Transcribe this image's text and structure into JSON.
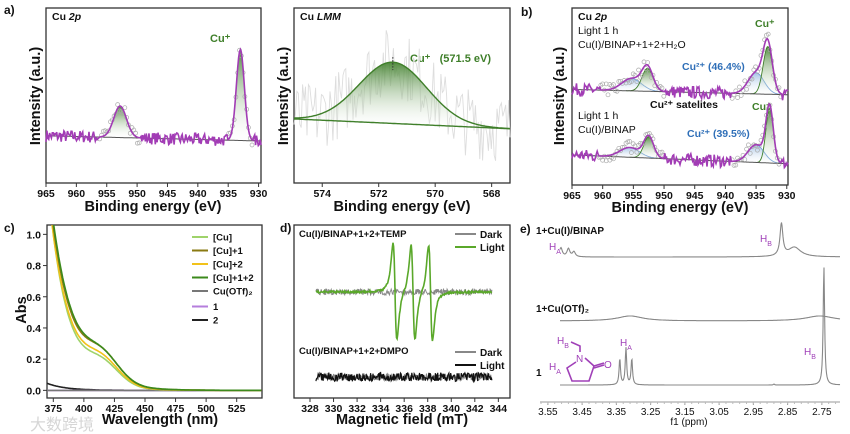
{
  "figure": {
    "panel_labels": [
      "a)",
      "b)",
      "c)",
      "d)",
      "e)"
    ],
    "watermark": "大数跨境"
  },
  "colors": {
    "fit": "#a23cb5",
    "cu_plus": "#3f7f2a",
    "cu_2plus": "#6f9fd8",
    "baseline": "#555555"
  },
  "chart_data": [
    {
      "id": "a_cu2p",
      "type": "line",
      "panel": "a)",
      "title": "Cu",
      "title_italic": "2p",
      "xlabel": "Binding energy (eV)",
      "ylabel": "Intensity (a.u.)",
      "xlim": [
        965,
        929.6
      ],
      "ylim": [
        0,
        1
      ],
      "xticks": [
        965,
        960,
        955,
        950,
        945,
        940,
        935,
        930
      ],
      "annotations": {
        "cu_plus": "Cu⁺"
      },
      "spectra": [
        {
          "baseline": [
            0.27,
            0.24
          ],
          "noise": 0.035,
          "components": [
            {
              "name": "Cu+ 2p1/2",
              "center": 952.8,
              "height": 0.18,
              "sigma": 1.05,
              "color": "#3f7f2a"
            },
            {
              "name": "Cu+ 2p3/2",
              "center": 933.0,
              "height": 0.52,
              "sigma": 0.65,
              "color": "#3f7f2a"
            }
          ]
        }
      ]
    },
    {
      "id": "a_culmm",
      "type": "line",
      "panel": "a)",
      "title": "Cu",
      "title_italic": "LMM",
      "xlabel": "Binding energy (eV)",
      "ylabel": "Intensity (a.u.)",
      "xlim": [
        575,
        567.35
      ],
      "ylim": [
        0,
        1
      ],
      "xticks": [
        574,
        572,
        570,
        568
      ],
      "annotation": "Cu⁺   (571.5 eV)",
      "peak": {
        "center": 571.5,
        "height": 0.35,
        "sigma": 1.2
      },
      "baseline": [
        0.366,
        0.31
      ],
      "noise": 0.2
    },
    {
      "id": "b_cu2p_light",
      "type": "line",
      "panel": "b)",
      "title": "Cu",
      "title_italic": "2p",
      "xlabel": "Binding energy (eV)",
      "ylabel": "Intensity (a.u.)",
      "xlim": [
        965,
        929.8
      ],
      "ylim": [
        0,
        1
      ],
      "xticks": [
        965,
        960,
        955,
        950,
        945,
        940,
        935,
        930
      ],
      "labels": {
        "top_condition": "Light 1 h",
        "top_sample": "Cu(I)/BINAP+1+2+H₂O",
        "top_cu_plus": "Cu⁺",
        "top_cu_2plus": "Cu²⁺ (46.4%)",
        "satellites": "Cu²⁺ satelites",
        "bottom_condition": "Light 1 h",
        "bottom_sample": "Cu(I)/BINAP",
        "bottom_cu_plus": "Cu⁺",
        "bottom_cu_2plus": "Cu²⁺ (39.5%)"
      },
      "spectra": [
        {
          "name": "Cu(I)/BINAP+1+2+H2O",
          "baseline": [
            0.54,
            0.51
          ],
          "noise": 0.035,
          "cu2_percent": 46.4,
          "components": [
            {
              "name": "Cu2+ sat",
              "center": 955.3,
              "height": 0.07,
              "sigma": 1.6,
              "color": "#6f9fd8"
            },
            {
              "name": "Cu+ 2p1/2",
              "center": 952.7,
              "height": 0.13,
              "sigma": 0.9,
              "color": "#3f7f2a"
            },
            {
              "name": "Cu2+ 2p3/2",
              "center": 935.0,
              "height": 0.12,
              "sigma": 1.3,
              "color": "#6f9fd8"
            },
            {
              "name": "Cu+ 2p3/2",
              "center": 933.1,
              "height": 0.27,
              "sigma": 0.75,
              "color": "#3f7f2a"
            }
          ]
        },
        {
          "name": "Cu(I)/BINAP",
          "baseline": [
            0.17,
            0.12
          ],
          "noise": 0.035,
          "cu2_percent": 39.5,
          "components": [
            {
              "name": "Cu2+ sat",
              "center": 955.6,
              "height": 0.055,
              "sigma": 1.6,
              "color": "#6f9fd8"
            },
            {
              "name": "Cu+ 2p1/2",
              "center": 952.5,
              "height": 0.12,
              "sigma": 0.8,
              "color": "#3f7f2a"
            },
            {
              "name": "Cu2+ 2p3/2",
              "center": 935.0,
              "height": 0.1,
              "sigma": 1.3,
              "color": "#6f9fd8"
            },
            {
              "name": "Cu+ 2p3/2",
              "center": 932.8,
              "height": 0.31,
              "sigma": 0.6,
              "color": "#3f7f2a"
            }
          ]
        }
      ]
    },
    {
      "id": "c_uvvis",
      "type": "line",
      "panel": "c)",
      "xlabel": "Wavelength (nm)",
      "ylabel": "Abs",
      "xlim": [
        369.85,
        545.7
      ],
      "ylim": [
        -0.049,
        1.06
      ],
      "xticks": [
        375,
        400,
        425,
        450,
        475,
        500,
        525
      ],
      "yticks": [
        "0.0",
        "0.2",
        "0.4",
        "0.6",
        "0.8",
        "1.0"
      ],
      "series": [
        {
          "name": "[Cu]",
          "color": "#9fd36a",
          "A": 1.0,
          "tau": 16,
          "B": 0.13
        },
        {
          "name": "[Cu]+1",
          "color": "#8a7a12",
          "A": 1.05,
          "tau": 18,
          "B": 0.16
        },
        {
          "name": "[Cu]+2",
          "color": "#f2c21a",
          "A": 1.0,
          "tau": 17,
          "B": 0.14
        },
        {
          "name": "[Cu]+1+2",
          "color": "#3c8a1c",
          "A": 1.08,
          "tau": 18.5,
          "B": 0.15
        },
        {
          "name": "Cu(OTf)₂",
          "color": "#777777",
          "A": 0,
          "tau": 1,
          "B": 0
        },
        {
          "name": "1",
          "color": "#b57edc",
          "A": 0,
          "tau": 1,
          "B": 0
        },
        {
          "name": "2",
          "color": "#222222",
          "A": 0.045,
          "tau": 15,
          "B": 0,
          "start": 370
        }
      ],
      "shoulder_nm": 415,
      "shoulder_sigma": 14,
      "legend": "top-right"
    },
    {
      "id": "d_epr",
      "type": "line",
      "panel": "d)",
      "xlabel": "Magnetic field (mT)",
      "xlim": [
        326.64,
        344.99
      ],
      "xticks": [
        328,
        330,
        332,
        334,
        336,
        338,
        340,
        342,
        344
      ],
      "data_range": [
        328.5,
        343.5
      ],
      "groups": [
        {
          "title": "Cu(I)/BINAP+1+2+TEMP",
          "series": [
            {
              "name": "Dark",
              "color": "#888888"
            },
            {
              "name": "Light",
              "color": "#5aa82a"
            }
          ],
          "light_lines_mT": [
            335.22,
            336.75,
            338.24
          ],
          "linewidth_mT": 0.28
        },
        {
          "title": "Cu(I)/BINAP+1+2+DMPO",
          "series": [
            {
              "name": "Dark",
              "color": "#888888"
            },
            {
              "name": "Light",
              "color": "#111111"
            }
          ],
          "light_lines_mT": [],
          "linewidth_mT": 0
        }
      ],
      "legend": "top-right"
    },
    {
      "id": "e_nmr",
      "type": "line",
      "panel": "e)",
      "xlabel": "f1 (ppm)",
      "xlim": [
        3.573,
        2.697
      ],
      "xticks": [
        "3.55",
        "3.45",
        "3.35",
        "3.25",
        "3.15",
        "3.05",
        "2.95",
        "2.85",
        "2.75"
      ],
      "h_label": "H",
      "sub_a": "A",
      "sub_b": "B",
      "structure_atoms": {
        "n": "N",
        "o": "O"
      },
      "traces": [
        {
          "name": "1+Cu(I)/BINAP",
          "peaks": [
            {
              "ppm": 3.512,
              "height": 0.076,
              "width": 0.005
            },
            {
              "ppm": 3.49,
              "height": 0.067,
              "width": 0.005
            },
            {
              "ppm": 3.474,
              "height": 0.042,
              "width": 0.005
            },
            {
              "ppm": 2.868,
              "height": 0.27,
              "width": 0.005
            },
            {
              "ppm": 2.83,
              "height": 0.08,
              "width": 0.022
            }
          ]
        },
        {
          "name": "1+Cu(OTf)₂",
          "peaks": [
            {
              "ppm": 3.31,
              "height": 0.042,
              "width": 0.045
            },
            {
              "ppm": 2.756,
              "height": 0.042,
              "width": 0.05
            }
          ]
        },
        {
          "name": "1",
          "peaks": [
            {
              "ppm": 3.34,
              "height": 0.22,
              "width": 0.0025
            },
            {
              "ppm": 3.322,
              "height": 0.31,
              "width": 0.0025
            },
            {
              "ppm": 3.305,
              "height": 0.22,
              "width": 0.0025
            },
            {
              "ppm": 2.89,
              "height": 0.008,
              "width": 0.002
            },
            {
              "ppm": 2.744,
              "height": 1.0,
              "width": 0.0025
            }
          ]
        }
      ]
    }
  ]
}
